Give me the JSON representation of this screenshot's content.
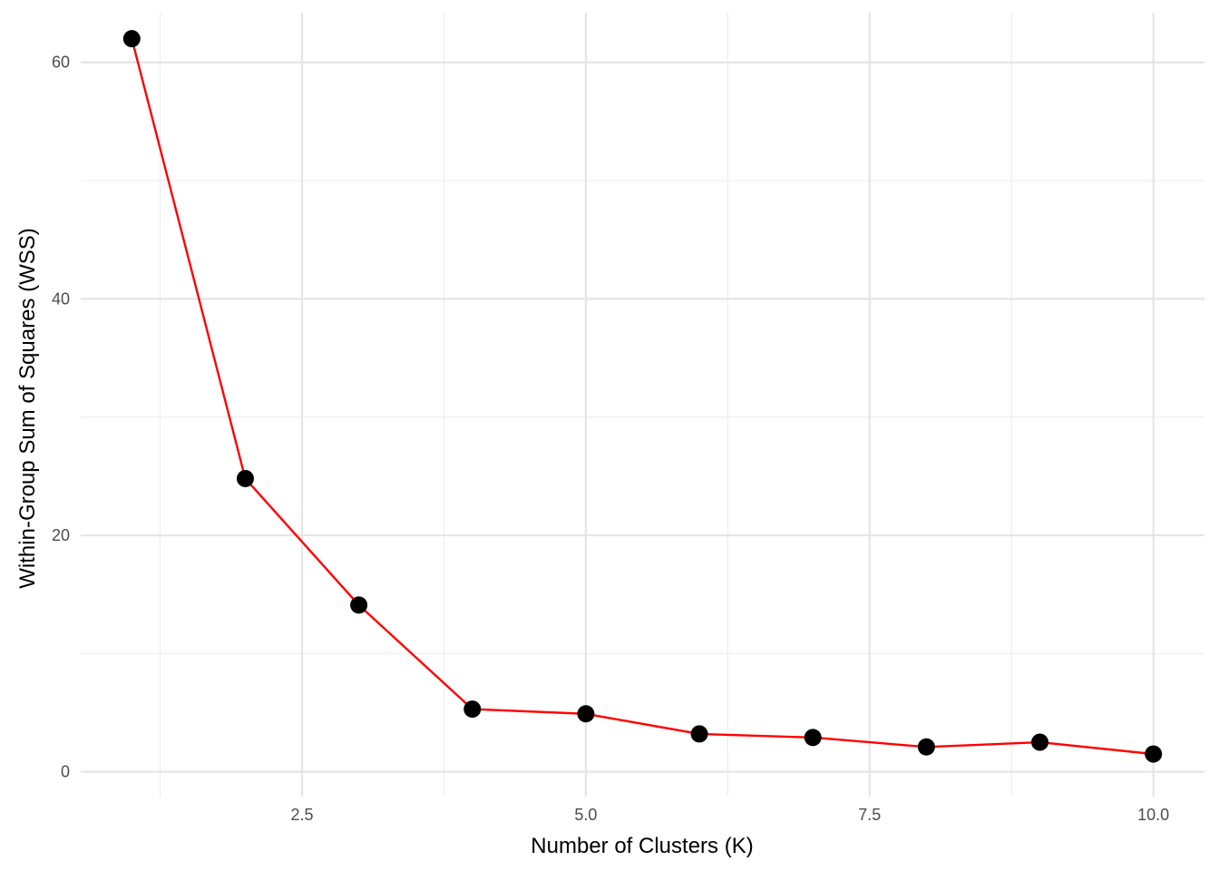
{
  "chart_data": {
    "type": "line",
    "title": "",
    "xlabel": "Number of Clusters (K)",
    "ylabel": "Within-Group Sum of Squares (WSS)",
    "xlim": [
      0.55,
      10.45
    ],
    "ylim": [
      -2.1,
      64.2
    ],
    "x_ticks": [
      2.5,
      5.0,
      7.5,
      10.0
    ],
    "x_tick_labels": [
      "2.5",
      "5.0",
      "7.5",
      "10.0"
    ],
    "x_minor_ticks": [
      1.25,
      3.75,
      6.25,
      8.75
    ],
    "y_ticks": [
      0,
      20,
      40,
      60
    ],
    "y_tick_labels": [
      "0",
      "20",
      "40",
      "60"
    ],
    "y_minor_ticks": [
      10,
      30,
      50
    ],
    "grid": true,
    "series": [
      {
        "x": [
          1,
          2,
          3,
          4,
          5,
          6,
          7,
          8,
          9,
          10
        ],
        "values": [
          62.0,
          24.8,
          14.1,
          5.3,
          4.9,
          3.2,
          2.9,
          2.1,
          2.5,
          1.5
        ],
        "line_color": "#ff0000",
        "marker_color": "#000000"
      }
    ]
  }
}
